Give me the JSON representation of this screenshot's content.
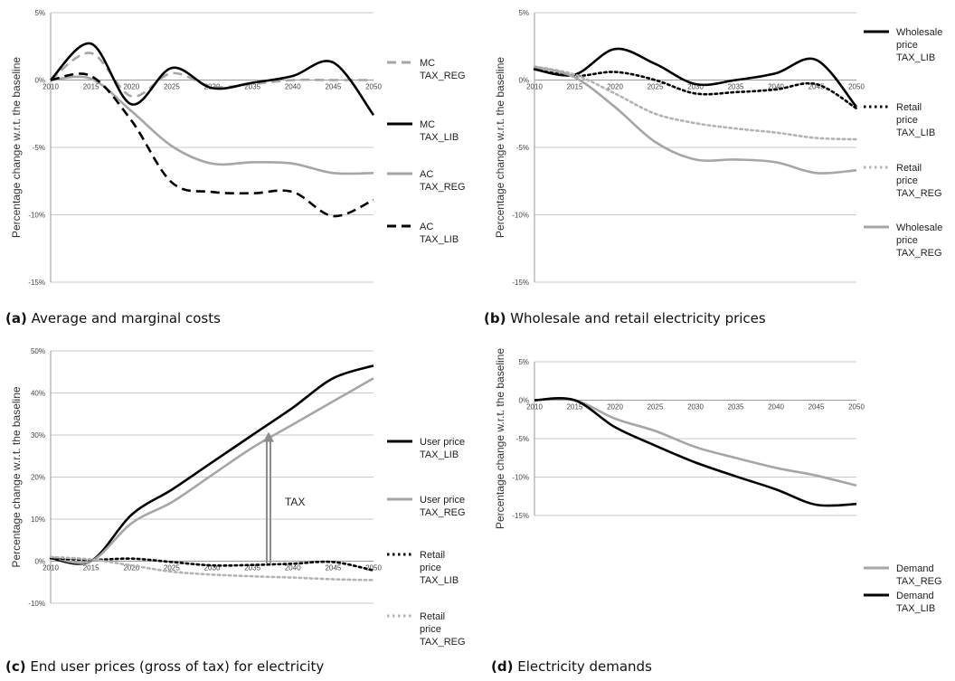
{
  "captions": [
    {
      "tag": "(a)",
      "text": " Average and marginal costs"
    },
    {
      "tag": "(b)",
      "text": " Wholesale and retail electricity prices"
    },
    {
      "tag": "(c)",
      "text": " End user prices (gross of tax) for electricity"
    },
    {
      "tag": "(d)",
      "text": " Electricity demands"
    }
  ],
  "chart_data": [
    {
      "type": "line",
      "ylabel": "Percentage change w.r.t. the baseline",
      "x": [
        2010,
        2015,
        2020,
        2025,
        2030,
        2035,
        2040,
        2045,
        2050
      ],
      "xticks": [
        "2010",
        "2015",
        "2020",
        "2025",
        "2030",
        "2035",
        "2040",
        "2045",
        "2050"
      ],
      "yticks": [
        "5%",
        "0%",
        "-5%",
        "-10%",
        "-15%"
      ],
      "ytick_values": [
        5,
        0,
        -5,
        -10,
        -15
      ],
      "ylim": [
        -15,
        5
      ],
      "grid": true,
      "legend_position": "right",
      "series": [
        {
          "name": "MC TAX_REG",
          "legend": [
            "MC",
            "TAX_REG"
          ],
          "color": "#a6a6a6",
          "style": "dashed",
          "values": [
            0,
            2.0,
            -1.2,
            0.5,
            -0.5,
            -0.3,
            0.0,
            0.0,
            0.0
          ]
        },
        {
          "name": "MC TAX_LIB",
          "legend": [
            "MC",
            "TAX_LIB"
          ],
          "color": "#000000",
          "style": "solid",
          "values": [
            0,
            2.7,
            -1.8,
            0.9,
            -0.6,
            -0.2,
            0.3,
            1.3,
            -2.6
          ]
        },
        {
          "name": "AC TAX_REG",
          "legend": [
            "AC",
            "TAX_REG"
          ],
          "color": "#a6a6a6",
          "style": "solid",
          "values": [
            0,
            0.1,
            -2.3,
            -4.9,
            -6.2,
            -6.1,
            -6.2,
            -6.9,
            -6.9
          ]
        },
        {
          "name": "AC TAX_LIB",
          "legend": [
            "AC",
            "TAX_LIB"
          ],
          "color": "#000000",
          "style": "dashed",
          "values": [
            0,
            0.3,
            -3.0,
            -7.6,
            -8.3,
            -8.4,
            -8.3,
            -10.1,
            -8.9
          ]
        }
      ]
    },
    {
      "type": "line",
      "ylabel": "Percentage change w.r.t. the baseline",
      "x": [
        2010,
        2015,
        2020,
        2025,
        2030,
        2035,
        2040,
        2045,
        2050
      ],
      "xticks": [
        "2010",
        "2015",
        "2020",
        "2025",
        "2030",
        "2035",
        "2040",
        "2045",
        "2050"
      ],
      "yticks": [
        "5%",
        "0%",
        "-5%",
        "-10%",
        "-15%"
      ],
      "ytick_values": [
        5,
        0,
        -5,
        -10,
        -15
      ],
      "ylim": [
        -15,
        5
      ],
      "grid": true,
      "legend_position": "right",
      "series": [
        {
          "name": "Wholesale price TAX_LIB",
          "legend": [
            "Wholesale",
            "price",
            "TAX_LIB"
          ],
          "color": "#000000",
          "style": "solid",
          "values": [
            0.8,
            0.4,
            2.3,
            1.2,
            -0.3,
            0.0,
            0.5,
            1.5,
            -2.0
          ]
        },
        {
          "name": "Retail price TAX_LIB",
          "legend": [
            "Retail",
            "price",
            "TAX_LIB"
          ],
          "color": "#000000",
          "style": "dotted",
          "values": [
            0.8,
            0.3,
            0.6,
            0.0,
            -1.0,
            -0.9,
            -0.7,
            -0.3,
            -2.1
          ]
        },
        {
          "name": "Retail price TAX_REG",
          "legend": [
            "Retail",
            "price",
            "TAX_REG"
          ],
          "color": "#b3b3b3",
          "style": "dotted",
          "values": [
            1.0,
            0.4,
            -1.0,
            -2.5,
            -3.2,
            -3.6,
            -3.9,
            -4.3,
            -4.4
          ]
        },
        {
          "name": "Wholesale price TAX_REG",
          "legend": [
            "Wholesale",
            "price",
            "TAX_REG"
          ],
          "color": "#a6a6a6",
          "style": "solid",
          "values": [
            1.0,
            0.2,
            -2.0,
            -4.6,
            -5.9,
            -5.9,
            -6.1,
            -6.9,
            -6.7
          ]
        }
      ]
    },
    {
      "type": "line",
      "ylabel": "Percentage change w.r.t. the baseline",
      "x": [
        2010,
        2015,
        2020,
        2025,
        2030,
        2035,
        2040,
        2045,
        2050
      ],
      "xticks": [
        "2010",
        "2015",
        "2020",
        "2025",
        "2030",
        "2035",
        "2040",
        "2045",
        "2050"
      ],
      "yticks": [
        "50%",
        "40%",
        "30%",
        "20%",
        "10%",
        "0%",
        "-10%"
      ],
      "ytick_values": [
        50,
        40,
        30,
        20,
        10,
        0,
        -10
      ],
      "ylim": [
        -10,
        50
      ],
      "grid": true,
      "legend_position": "right",
      "annotation": {
        "text": "TAX",
        "x": 2037,
        "from": -0.5,
        "to": 30.5
      },
      "series": [
        {
          "name": "User price TAX_LIB",
          "legend": [
            "User price",
            "TAX_LIB"
          ],
          "color": "#000000",
          "style": "solid",
          "values": [
            0.7,
            0.0,
            11.0,
            17.0,
            23.5,
            30.0,
            36.5,
            43.5,
            46.5
          ]
        },
        {
          "name": "User price TAX_REG",
          "legend": [
            "User price",
            "TAX_REG"
          ],
          "color": "#a6a6a6",
          "style": "solid",
          "values": [
            1.0,
            0.0,
            9.0,
            14.0,
            20.5,
            27.0,
            32.5,
            38.0,
            43.5
          ]
        },
        {
          "name": "Retail price TAX_LIB",
          "legend": [
            "Retail",
            "price",
            "TAX_LIB"
          ],
          "color": "#000000",
          "style": "dotted",
          "values": [
            0.7,
            0.3,
            0.6,
            -0.2,
            -1.0,
            -0.9,
            -0.6,
            -0.2,
            -2.2
          ]
        },
        {
          "name": "Retail price TAX_REG",
          "legend": [
            "Retail",
            "price",
            "TAX_REG"
          ],
          "color": "#b3b3b3",
          "style": "dotted",
          "values": [
            1.0,
            0.4,
            -1.0,
            -2.5,
            -3.2,
            -3.6,
            -3.9,
            -4.3,
            -4.5
          ]
        }
      ]
    },
    {
      "type": "line",
      "ylabel": "Percentage change w.r.t. the baseline",
      "x": [
        2010,
        2015,
        2020,
        2025,
        2030,
        2035,
        2040,
        2045,
        2050
      ],
      "xticks": [
        "2010",
        "2015",
        "2020",
        "2025",
        "2030",
        "2035",
        "2040",
        "2045",
        "2050"
      ],
      "yticks": [
        "5%",
        "0%",
        "-5%",
        "-10%",
        "-15%"
      ],
      "ytick_values": [
        5,
        0,
        -5,
        -10,
        -15
      ],
      "ylim": [
        -15,
        5
      ],
      "grid": true,
      "legend_position": "bottom-right",
      "series": [
        {
          "name": "Demand TAX_REG",
          "legend": [
            "Demand",
            "TAX_REG"
          ],
          "color": "#a6a6a6",
          "style": "solid",
          "values": [
            0,
            0,
            -2.4,
            -4.0,
            -6.1,
            -7.5,
            -8.8,
            -9.8,
            -11.1
          ]
        },
        {
          "name": "Demand TAX_LIB",
          "legend": [
            "Demand",
            "TAX_LIB"
          ],
          "color": "#000000",
          "style": "solid",
          "values": [
            0,
            0,
            -3.5,
            -5.9,
            -8.1,
            -9.9,
            -11.6,
            -13.6,
            -13.5
          ]
        }
      ]
    }
  ]
}
